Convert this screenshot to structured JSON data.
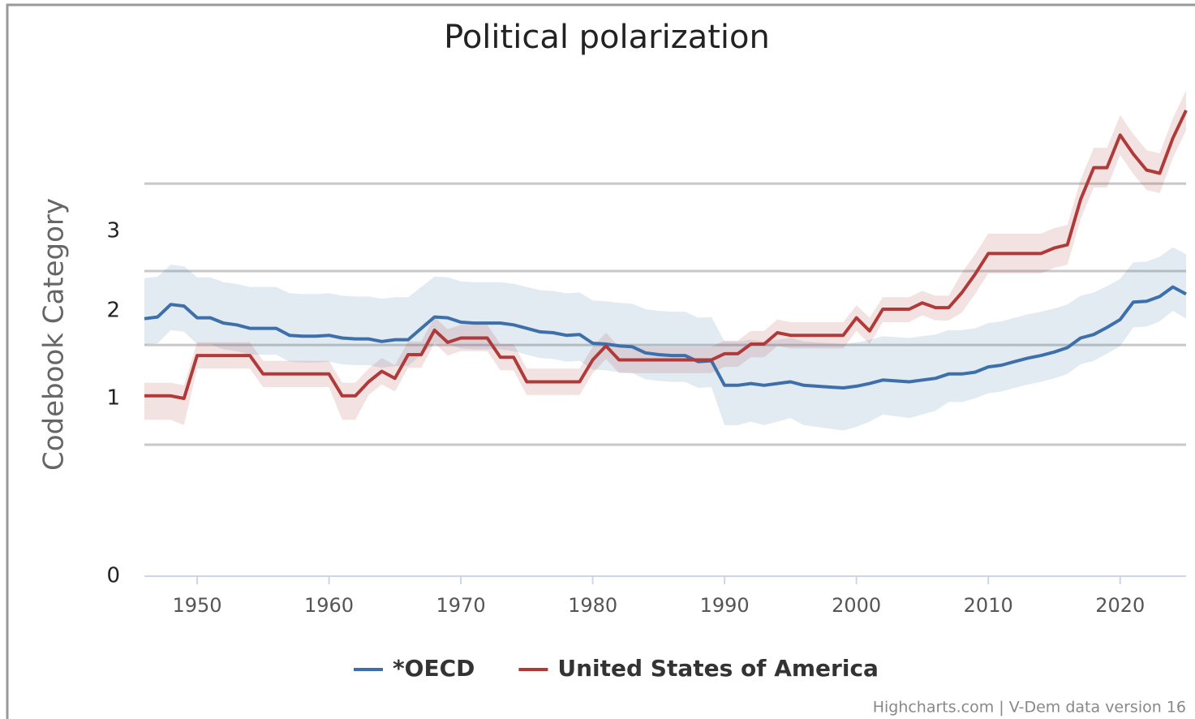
{
  "chart_data": {
    "type": "line",
    "title": "Political polarization",
    "y_axis_label": "Codebook Category",
    "credits": "Highcharts.com | V-Dem data version 16",
    "x": [
      1946,
      1947,
      1948,
      1949,
      1950,
      1951,
      1952,
      1953,
      1954,
      1955,
      1956,
      1957,
      1958,
      1959,
      1960,
      1961,
      1962,
      1963,
      1964,
      1965,
      1966,
      1967,
      1968,
      1969,
      1970,
      1971,
      1972,
      1973,
      1974,
      1975,
      1976,
      1977,
      1978,
      1979,
      1980,
      1981,
      1982,
      1983,
      1984,
      1985,
      1986,
      1987,
      1988,
      1989,
      1990,
      1991,
      1992,
      1993,
      1994,
      1995,
      1996,
      1997,
      1998,
      1999,
      2000,
      2001,
      2002,
      2003,
      2004,
      2005,
      2006,
      2007,
      2008,
      2009,
      2010,
      2011,
      2012,
      2013,
      2014,
      2015,
      2016,
      2017,
      2018,
      2019,
      2020,
      2021,
      2022,
      2023,
      2024,
      2025
    ],
    "xlim": [
      1946,
      2025
    ],
    "xticks": [
      1950,
      1960,
      1970,
      1980,
      1990,
      2000,
      2010,
      2020
    ],
    "ylim": [
      0,
      4.8
    ],
    "yticks": [
      0,
      1,
      2,
      3
    ],
    "grid_lines": [
      0.74,
      1.61,
      2.5,
      3.6
    ],
    "legend": "bottom",
    "series": [
      {
        "name": "*OECD",
        "color": "#3d6faa",
        "band_color": "rgba(61,111,170,0.15)",
        "values": [
          1.91,
          1.93,
          2.08,
          2.06,
          1.92,
          1.92,
          1.86,
          1.84,
          1.8,
          1.8,
          1.8,
          1.72,
          1.71,
          1.71,
          1.72,
          1.69,
          1.68,
          1.68,
          1.65,
          1.67,
          1.67,
          1.8,
          1.93,
          1.92,
          1.87,
          1.86,
          1.86,
          1.86,
          1.84,
          1.8,
          1.76,
          1.75,
          1.72,
          1.73,
          1.63,
          1.62,
          1.6,
          1.59,
          1.52,
          1.5,
          1.49,
          1.49,
          1.42,
          1.43,
          1.15,
          1.15,
          1.17,
          1.15,
          1.17,
          1.19,
          1.15,
          1.14,
          1.13,
          1.12,
          1.14,
          1.17,
          1.21,
          1.2,
          1.19,
          1.21,
          1.23,
          1.28,
          1.28,
          1.3,
          1.36,
          1.38,
          1.42,
          1.46,
          1.49,
          1.53,
          1.58,
          1.69,
          1.73,
          1.81,
          1.9,
          2.11,
          2.12,
          2.18,
          2.3,
          2.21
        ],
        "upper": [
          2.41,
          2.43,
          2.58,
          2.56,
          2.42,
          2.42,
          2.36,
          2.34,
          2.3,
          2.3,
          2.3,
          2.22,
          2.21,
          2.21,
          2.22,
          2.19,
          2.18,
          2.18,
          2.15,
          2.17,
          2.17,
          2.3,
          2.43,
          2.42,
          2.37,
          2.36,
          2.36,
          2.36,
          2.34,
          2.3,
          2.26,
          2.25,
          2.22,
          2.23,
          2.13,
          2.12,
          2.1,
          2.09,
          2.02,
          2.0,
          1.99,
          1.99,
          1.92,
          1.93,
          1.65,
          1.65,
          1.67,
          1.65,
          1.67,
          1.69,
          1.65,
          1.64,
          1.63,
          1.62,
          1.64,
          1.67,
          1.71,
          1.7,
          1.69,
          1.71,
          1.73,
          1.78,
          1.78,
          1.8,
          1.86,
          1.88,
          1.92,
          1.96,
          1.99,
          2.03,
          2.08,
          2.19,
          2.23,
          2.31,
          2.4,
          2.61,
          2.62,
          2.68,
          2.8,
          2.71
        ],
        "lower": [
          1.61,
          1.63,
          1.78,
          1.76,
          1.62,
          1.62,
          1.56,
          1.54,
          1.5,
          1.5,
          1.5,
          1.42,
          1.41,
          1.41,
          1.42,
          1.39,
          1.38,
          1.38,
          1.35,
          1.37,
          1.37,
          1.5,
          1.63,
          1.62,
          1.57,
          1.56,
          1.56,
          1.56,
          1.54,
          1.5,
          1.46,
          1.45,
          1.42,
          1.43,
          1.33,
          1.32,
          1.3,
          1.29,
          1.22,
          1.2,
          1.19,
          1.19,
          1.12,
          1.13,
          0.85,
          0.85,
          0.87,
          0.85,
          0.87,
          0.89,
          0.85,
          0.84,
          0.83,
          0.82,
          0.84,
          0.87,
          0.91,
          0.9,
          0.89,
          0.91,
          0.93,
          0.98,
          0.98,
          1.0,
          1.06,
          1.08,
          1.12,
          1.16,
          1.19,
          1.23,
          1.28,
          1.39,
          1.43,
          1.51,
          1.6,
          1.81,
          1.82,
          1.88,
          2.0,
          1.91
        ]
      },
      {
        "name": "United States of America",
        "color": "#b03a3a",
        "band_color": "rgba(176,58,58,0.15)",
        "values": [
          1.03,
          1.03,
          1.03,
          1.0,
          1.49,
          1.49,
          1.49,
          1.49,
          1.49,
          1.28,
          1.28,
          1.28,
          1.28,
          1.28,
          1.28,
          1.03,
          1.03,
          1.19,
          1.31,
          1.23,
          1.5,
          1.5,
          1.78,
          1.64,
          1.69,
          1.69,
          1.69,
          1.47,
          1.47,
          1.19,
          1.19,
          1.19,
          1.19,
          1.19,
          1.44,
          1.6,
          1.44,
          1.44,
          1.44,
          1.44,
          1.44,
          1.44,
          1.44,
          1.44,
          1.51,
          1.51,
          1.62,
          1.62,
          1.75,
          1.72,
          1.72,
          1.72,
          1.72,
          1.72,
          1.92,
          1.77,
          2.02,
          2.02,
          2.02,
          2.1,
          2.04,
          2.04,
          2.23,
          2.46,
          2.72,
          2.72,
          2.72,
          2.72,
          2.72,
          2.79,
          2.83,
          3.4,
          3.8,
          3.8,
          4.21,
          3.97,
          3.77,
          3.73,
          4.17,
          4.52
        ],
        "upper": [
          1.18,
          1.18,
          1.18,
          1.15,
          1.64,
          1.64,
          1.64,
          1.64,
          1.64,
          1.43,
          1.43,
          1.43,
          1.43,
          1.43,
          1.43,
          1.18,
          1.18,
          1.34,
          1.46,
          1.38,
          1.65,
          1.65,
          1.93,
          1.79,
          1.84,
          1.84,
          1.84,
          1.62,
          1.62,
          1.34,
          1.34,
          1.34,
          1.34,
          1.34,
          1.59,
          1.75,
          1.59,
          1.59,
          1.59,
          1.59,
          1.59,
          1.59,
          1.59,
          1.59,
          1.66,
          1.66,
          1.77,
          1.77,
          1.9,
          1.87,
          1.87,
          1.87,
          1.87,
          1.87,
          2.07,
          1.92,
          2.17,
          2.17,
          2.17,
          2.25,
          2.19,
          2.19,
          2.48,
          2.71,
          2.97,
          2.97,
          2.97,
          2.97,
          2.97,
          3.04,
          3.08,
          3.65,
          4.05,
          4.05,
          4.46,
          4.22,
          4.02,
          3.98,
          4.42,
          4.77
        ],
        "lower": [
          0.88,
          0.88,
          0.88,
          0.85,
          1.34,
          1.34,
          1.34,
          1.34,
          1.34,
          1.13,
          1.13,
          1.13,
          1.13,
          1.13,
          1.13,
          0.88,
          0.88,
          1.04,
          1.16,
          1.08,
          1.35,
          1.35,
          1.63,
          1.49,
          1.54,
          1.54,
          1.54,
          1.32,
          1.32,
          1.04,
          1.04,
          1.04,
          1.04,
          1.04,
          1.29,
          1.45,
          1.29,
          1.29,
          1.29,
          1.29,
          1.29,
          1.29,
          1.29,
          1.29,
          1.36,
          1.36,
          1.47,
          1.47,
          1.6,
          1.57,
          1.57,
          1.57,
          1.57,
          1.57,
          1.77,
          1.62,
          1.87,
          1.87,
          1.87,
          1.95,
          1.89,
          1.89,
          1.98,
          2.21,
          2.47,
          2.47,
          2.47,
          2.47,
          2.47,
          2.54,
          2.58,
          3.15,
          3.55,
          3.55,
          3.96,
          3.72,
          3.52,
          3.48,
          3.92,
          4.27
        ]
      }
    ]
  }
}
